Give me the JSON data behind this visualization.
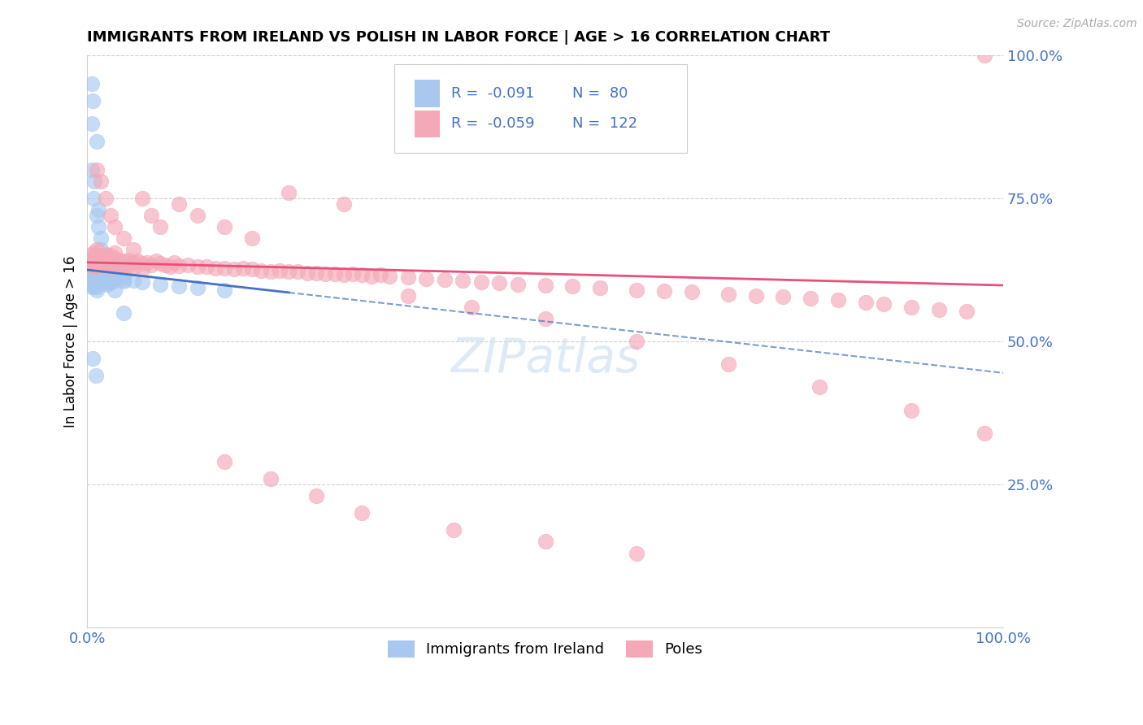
{
  "title": "IMMIGRANTS FROM IRELAND VS POLISH IN LABOR FORCE | AGE > 16 CORRELATION CHART",
  "source": "Source: ZipAtlas.com",
  "ylabel": "In Labor Force | Age > 16",
  "xlim": [
    0.0,
    1.0
  ],
  "ylim": [
    0.0,
    1.0
  ],
  "legend_R_ireland": "-0.091",
  "legend_N_ireland": "80",
  "legend_R_polish": "-0.059",
  "legend_N_polish": "122",
  "ireland_color": "#a8c8f0",
  "polish_color": "#f5a8b8",
  "ireland_line_color": "#4472c4",
  "polish_line_color": "#e8507a",
  "text_color": "#4472c4",
  "grid_color": "#d0d0d0",
  "watermark_color": "#c8dff0",
  "ireland_x": [
    0.005,
    0.005,
    0.005,
    0.005,
    0.005,
    0.005,
    0.005,
    0.005,
    0.005,
    0.005,
    0.007,
    0.007,
    0.007,
    0.007,
    0.007,
    0.007,
    0.007,
    0.007,
    0.01,
    0.01,
    0.01,
    0.01,
    0.01,
    0.01,
    0.01,
    0.01,
    0.01,
    0.01,
    0.013,
    0.013,
    0.013,
    0.013,
    0.013,
    0.013,
    0.016,
    0.016,
    0.016,
    0.016,
    0.016,
    0.02,
    0.02,
    0.02,
    0.02,
    0.02,
    0.025,
    0.025,
    0.025,
    0.025,
    0.03,
    0.03,
    0.03,
    0.04,
    0.04,
    0.04,
    0.05,
    0.06,
    0.08,
    0.1,
    0.12,
    0.15,
    0.005,
    0.005,
    0.005,
    0.007,
    0.01,
    0.012,
    0.015,
    0.02,
    0.025,
    0.03,
    0.04,
    0.01,
    0.008,
    0.012,
    0.006,
    0.015,
    0.018,
    0.022,
    0.006,
    0.009
  ],
  "ireland_y": [
    0.615,
    0.62,
    0.625,
    0.63,
    0.61,
    0.605,
    0.6,
    0.595,
    0.635,
    0.64,
    0.618,
    0.622,
    0.628,
    0.612,
    0.608,
    0.603,
    0.597,
    0.642,
    0.615,
    0.62,
    0.625,
    0.63,
    0.61,
    0.605,
    0.6,
    0.595,
    0.635,
    0.59,
    0.618,
    0.622,
    0.628,
    0.612,
    0.608,
    0.603,
    0.616,
    0.62,
    0.613,
    0.608,
    0.603,
    0.614,
    0.618,
    0.611,
    0.607,
    0.602,
    0.612,
    0.617,
    0.609,
    0.604,
    0.61,
    0.615,
    0.607,
    0.608,
    0.613,
    0.605,
    0.606,
    0.604,
    0.6,
    0.597,
    0.594,
    0.59,
    0.95,
    0.88,
    0.8,
    0.75,
    0.72,
    0.7,
    0.68,
    0.65,
    0.62,
    0.59,
    0.55,
    0.85,
    0.78,
    0.73,
    0.92,
    0.66,
    0.63,
    0.6,
    0.47,
    0.44
  ],
  "polish_x": [
    0.005,
    0.005,
    0.005,
    0.007,
    0.007,
    0.007,
    0.01,
    0.01,
    0.01,
    0.01,
    0.013,
    0.013,
    0.015,
    0.015,
    0.018,
    0.018,
    0.02,
    0.02,
    0.02,
    0.025,
    0.025,
    0.025,
    0.03,
    0.03,
    0.03,
    0.035,
    0.035,
    0.04,
    0.04,
    0.045,
    0.045,
    0.05,
    0.05,
    0.055,
    0.06,
    0.06,
    0.065,
    0.07,
    0.075,
    0.08,
    0.085,
    0.09,
    0.095,
    0.1,
    0.11,
    0.12,
    0.13,
    0.14,
    0.15,
    0.16,
    0.17,
    0.18,
    0.19,
    0.2,
    0.21,
    0.22,
    0.23,
    0.24,
    0.25,
    0.26,
    0.27,
    0.28,
    0.29,
    0.3,
    0.31,
    0.32,
    0.33,
    0.35,
    0.37,
    0.39,
    0.41,
    0.43,
    0.45,
    0.47,
    0.5,
    0.53,
    0.56,
    0.6,
    0.63,
    0.66,
    0.7,
    0.73,
    0.76,
    0.79,
    0.82,
    0.85,
    0.87,
    0.9,
    0.93,
    0.96,
    0.98,
    0.01,
    0.015,
    0.02,
    0.025,
    0.03,
    0.04,
    0.05,
    0.06,
    0.07,
    0.08,
    0.1,
    0.12,
    0.15,
    0.18,
    0.22,
    0.28,
    0.35,
    0.42,
    0.5,
    0.6,
    0.7,
    0.8,
    0.9,
    0.98,
    0.15,
    0.2,
    0.25,
    0.3,
    0.4,
    0.5,
    0.6
  ],
  "polish_y": [
    0.64,
    0.65,
    0.63,
    0.645,
    0.655,
    0.635,
    0.64,
    0.65,
    0.63,
    0.66,
    0.648,
    0.638,
    0.644,
    0.634,
    0.646,
    0.636,
    0.642,
    0.652,
    0.632,
    0.64,
    0.65,
    0.63,
    0.645,
    0.635,
    0.655,
    0.642,
    0.632,
    0.64,
    0.63,
    0.642,
    0.632,
    0.638,
    0.628,
    0.64,
    0.636,
    0.626,
    0.638,
    0.634,
    0.64,
    0.636,
    0.634,
    0.63,
    0.638,
    0.632,
    0.634,
    0.63,
    0.63,
    0.628,
    0.628,
    0.626,
    0.628,
    0.626,
    0.624,
    0.622,
    0.624,
    0.622,
    0.622,
    0.62,
    0.62,
    0.618,
    0.618,
    0.616,
    0.618,
    0.616,
    0.614,
    0.616,
    0.614,
    0.612,
    0.61,
    0.608,
    0.606,
    0.604,
    0.602,
    0.6,
    0.598,
    0.596,
    0.594,
    0.59,
    0.588,
    0.586,
    0.582,
    0.58,
    0.578,
    0.575,
    0.572,
    0.568,
    0.565,
    0.56,
    0.556,
    0.552,
    1.0,
    0.8,
    0.78,
    0.75,
    0.72,
    0.7,
    0.68,
    0.66,
    0.75,
    0.72,
    0.7,
    0.74,
    0.72,
    0.7,
    0.68,
    0.76,
    0.74,
    0.58,
    0.56,
    0.54,
    0.5,
    0.46,
    0.42,
    0.38,
    0.34,
    0.29,
    0.26,
    0.23,
    0.2,
    0.17,
    0.15,
    0.13
  ]
}
